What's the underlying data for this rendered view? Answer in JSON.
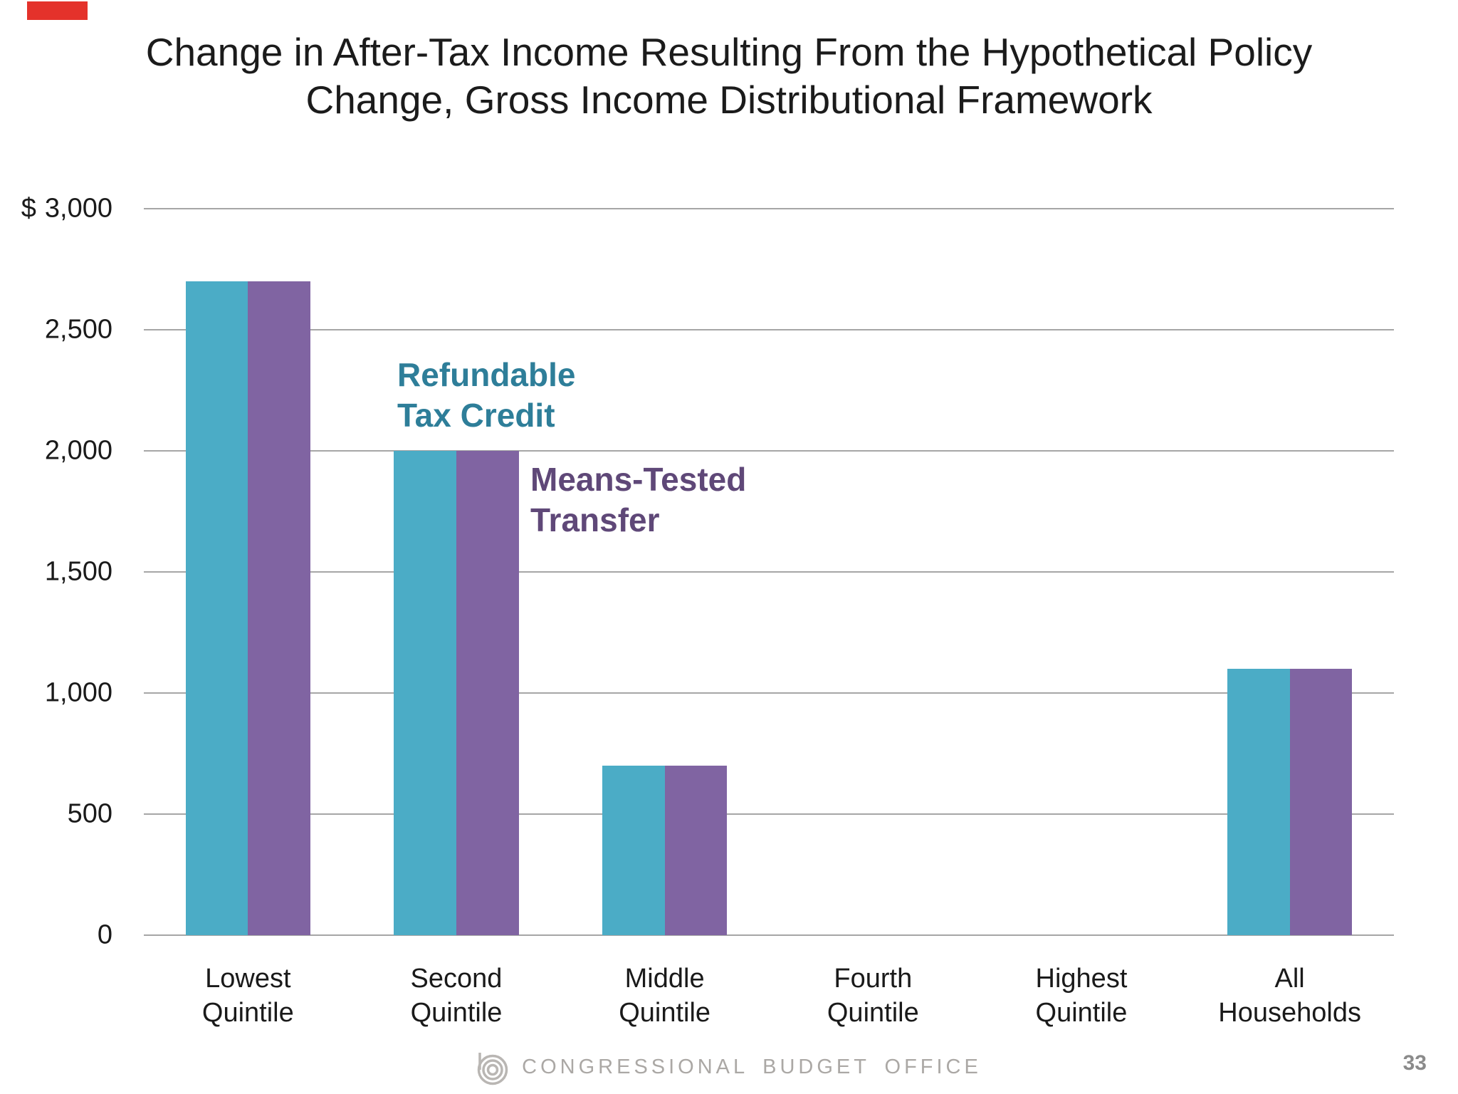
{
  "slide": {
    "title_line1": "Change in After-Tax Income Resulting From the Hypothetical Policy",
    "title_line2": "Change, Gross Income Distributional Framework",
    "red_marker_color": "#E4322B",
    "footer": {
      "brand": "CONGRESSIONAL BUDGET OFFICE",
      "logo": "cbo-concentric-circles-logo",
      "logo_color": "#B9B6B3",
      "page_number": "33"
    }
  },
  "chart_data": {
    "type": "bar",
    "title": "Change in After-Tax Income Resulting From the Hypothetical Policy Change, Gross Income Distributional Framework",
    "categories": [
      [
        "Lowest",
        "Quintile"
      ],
      [
        "Second",
        "Quintile"
      ],
      [
        "Middle",
        "Quintile"
      ],
      [
        "Fourth",
        "Quintile"
      ],
      [
        "Highest",
        "Quintile"
      ],
      [
        "All",
        "Households"
      ]
    ],
    "series": [
      {
        "name": "Refundable Tax Credit",
        "color": "#4BACC6",
        "values": [
          2700,
          2000,
          700,
          0,
          0,
          1100
        ]
      },
      {
        "name": "Means-Tested Transfer",
        "color": "#8064A2",
        "values": [
          2700,
          2000,
          700,
          0,
          0,
          1100
        ]
      }
    ],
    "xlabel": "",
    "ylabel": "Dollars",
    "ylim": [
      0,
      3000
    ],
    "ytick_interval": 500,
    "grid": true,
    "gridline_color": "#A6A6A6",
    "legend_position": "inline-annotations",
    "y_ticks": [
      {
        "prefix": "$",
        "label": "3,000",
        "value": 3000
      },
      {
        "prefix": "",
        "label": "2,500",
        "value": 2500
      },
      {
        "prefix": "",
        "label": "2,000",
        "value": 2000
      },
      {
        "prefix": "",
        "label": "1,500",
        "value": 1500
      },
      {
        "prefix": "",
        "label": "1,000",
        "value": 1000
      },
      {
        "prefix": "",
        "label": "500",
        "value": 500
      },
      {
        "prefix": "",
        "label": "0",
        "value": 0
      }
    ],
    "annotations": [
      {
        "lines": [
          "Refundable",
          "Tax Credit"
        ],
        "color": "#2E7E99",
        "x": 356,
        "y": 205
      },
      {
        "lines": [
          "Means-Tested",
          "Transfer"
        ],
        "color": "#5F4878",
        "x": 543,
        "y": 352
      }
    ]
  }
}
